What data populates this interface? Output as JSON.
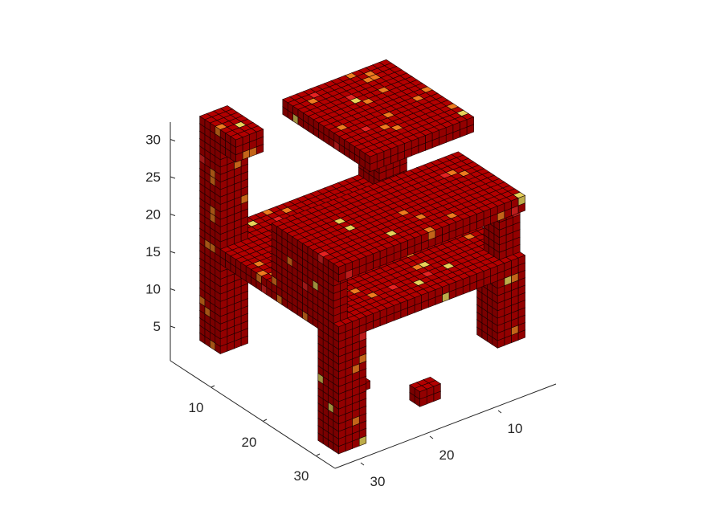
{
  "chart_data": {
    "type": "voxel3d",
    "title": "",
    "xlabel": "",
    "ylabel": "",
    "zlabel": "",
    "grid": false,
    "legend": "none",
    "z_ticks": [
      "5",
      "10",
      "15",
      "20",
      "25",
      "30"
    ],
    "y_ticks": [
      "10",
      "20",
      "30"
    ],
    "x_ticks": [
      "10",
      "20",
      "30"
    ],
    "xlim": [
      1,
      32
    ],
    "ylim": [
      1,
      32
    ],
    "zlim": [
      1,
      32
    ],
    "colors": {
      "voxel_main": "#b30000",
      "voxel_dark": "#7a0000",
      "voxel_highlight": "#e52222",
      "voxel_orange": "#ee7a1f",
      "voxel_yellow": "#e7d25a",
      "voxel_cyan": "#8ec9be",
      "edge": "#1a0000"
    },
    "object": "voxelized table (seat slab, upper shelf, four legs, back rail)"
  }
}
